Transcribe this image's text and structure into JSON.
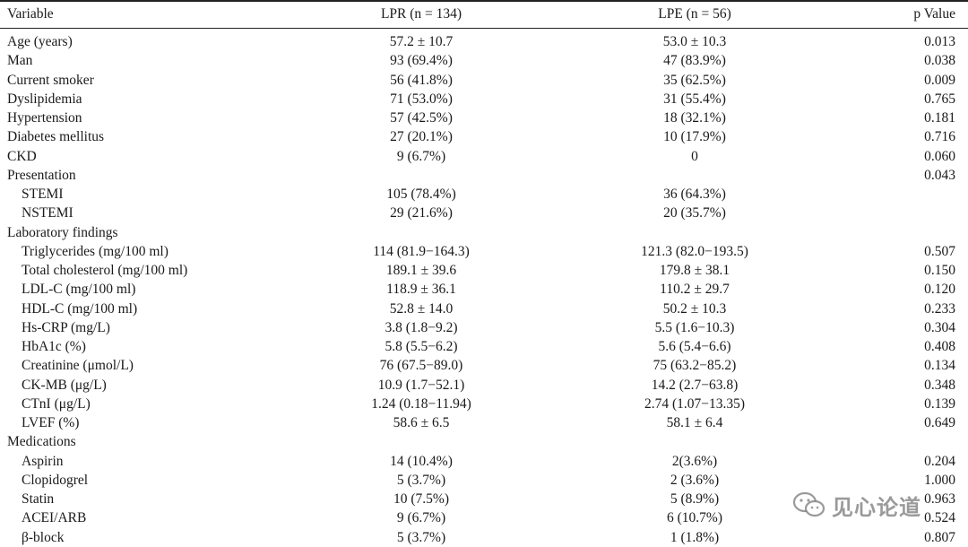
{
  "header": {
    "variable": "Variable",
    "lpr": "LPR (n = 134)",
    "lpe": "LPE (n = 56)",
    "p": "p Value"
  },
  "rows": [
    {
      "var": "Age (years)",
      "lpr": "57.2 ± 10.7",
      "lpe": "53.0 ± 10.3",
      "p": "0.013",
      "indent": false
    },
    {
      "var": "Man",
      "lpr": "93 (69.4%)",
      "lpe": "47 (83.9%)",
      "p": "0.038",
      "indent": false
    },
    {
      "var": "Current smoker",
      "lpr": "56 (41.8%)",
      "lpe": "35 (62.5%)",
      "p": "0.009",
      "indent": false
    },
    {
      "var": "Dyslipidemia",
      "lpr": "71 (53.0%)",
      "lpe": "31 (55.4%)",
      "p": "0.765",
      "indent": false
    },
    {
      "var": "Hypertension",
      "lpr": "57 (42.5%)",
      "lpe": "18 (32.1%)",
      "p": "0.181",
      "indent": false
    },
    {
      "var": "Diabetes mellitus",
      "lpr": "27 (20.1%)",
      "lpe": "10 (17.9%)",
      "p": "0.716",
      "indent": false
    },
    {
      "var": "CKD",
      "lpr": "9 (6.7%)",
      "lpe": "0",
      "p": "0.060",
      "indent": false
    },
    {
      "var": "Presentation",
      "lpr": "",
      "lpe": "",
      "p": "0.043",
      "indent": false
    },
    {
      "var": "STEMI",
      "lpr": "105 (78.4%)",
      "lpe": "36 (64.3%)",
      "p": "",
      "indent": true
    },
    {
      "var": "NSTEMI",
      "lpr": "29 (21.6%)",
      "lpe": "20 (35.7%)",
      "p": "",
      "indent": true
    },
    {
      "var": "Laboratory findings",
      "lpr": "",
      "lpe": "",
      "p": "",
      "indent": false
    },
    {
      "var": "Triglycerides (mg/100 ml)",
      "lpr": "114 (81.9−164.3)",
      "lpe": "121.3 (82.0−193.5)",
      "p": "0.507",
      "indent": true
    },
    {
      "var": "Total cholesterol (mg/100 ml)",
      "lpr": "189.1 ± 39.6",
      "lpe": "179.8 ± 38.1",
      "p": "0.150",
      "indent": true
    },
    {
      "var": "LDL-C (mg/100 ml)",
      "lpr": "118.9 ± 36.1",
      "lpe": "110.2 ± 29.7",
      "p": "0.120",
      "indent": true
    },
    {
      "var": "HDL-C (mg/100 ml)",
      "lpr": "52.8 ± 14.0",
      "lpe": "50.2 ± 10.3",
      "p": "0.233",
      "indent": true
    },
    {
      "var": "Hs-CRP (mg/L)",
      "lpr": "3.8 (1.8−9.2)",
      "lpe": "5.5 (1.6−10.3)",
      "p": "0.304",
      "indent": true
    },
    {
      "var": "HbA1c (%)",
      "lpr": "5.8 (5.5−6.2)",
      "lpe": "5.6 (5.4−6.6)",
      "p": "0.408",
      "indent": true
    },
    {
      "var": "Creatinine (μmol/L)",
      "lpr": "76 (67.5−89.0)",
      "lpe": "75 (63.2−85.2)",
      "p": "0.134",
      "indent": true
    },
    {
      "var": "CK-MB (μg/L)",
      "lpr": "10.9 (1.7−52.1)",
      "lpe": "14.2 (2.7−63.8)",
      "p": "0.348",
      "indent": true
    },
    {
      "var": "CTnI (μg/L)",
      "lpr": "1.24 (0.18−11.94)",
      "lpe": "2.74 (1.07−13.35)",
      "p": "0.139",
      "indent": true
    },
    {
      "var": "LVEF (%)",
      "lpr": "58.6 ± 6.5",
      "lpe": "58.1 ± 6.4",
      "p": "0.649",
      "indent": true
    },
    {
      "var": "Medications",
      "lpr": "",
      "lpe": "",
      "p": "",
      "indent": false
    },
    {
      "var": "Aspirin",
      "lpr": "14 (10.4%)",
      "lpe": "2(3.6%)",
      "p": "0.204",
      "indent": true
    },
    {
      "var": "Clopidogrel",
      "lpr": "5 (3.7%)",
      "lpe": "2 (3.6%)",
      "p": "1.000",
      "indent": true
    },
    {
      "var": "Statin",
      "lpr": "10 (7.5%)",
      "lpe": "5 (8.9%)",
      "p": "0.963",
      "indent": true
    },
    {
      "var": "ACEI/ARB",
      "lpr": "9 (6.7%)",
      "lpe": "6 (10.7%)",
      "p": "0.524",
      "indent": true
    },
    {
      "var": "β-block",
      "lpr": "5 (3.7%)",
      "lpe": "1 (1.8%)",
      "p": "0.807",
      "indent": true
    }
  ],
  "watermark": {
    "text": "见心论道",
    "icon": "wechat-icon"
  }
}
